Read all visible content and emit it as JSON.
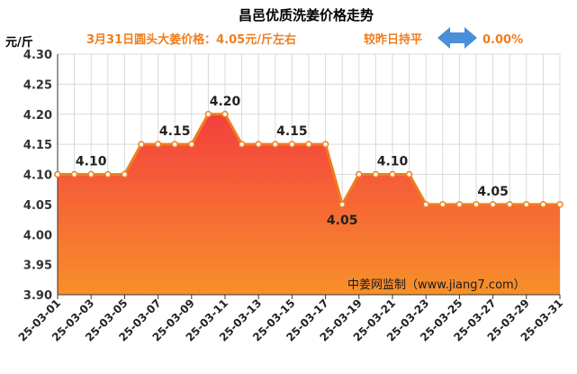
{
  "colors": {
    "accent": "#f07d1e",
    "area_top": "#f43f3f",
    "area_bottom": "#f7902a",
    "line": "#f07d1e",
    "arrow": "#4a8fd9",
    "grid": "#d9d9d9"
  },
  "header": {
    "title": "昌邑优质洗姜价格走势",
    "unit": "元/斤",
    "price_note": "3月31日圆头大姜价格：4.05元/斤左右",
    "compare_note": "较昨日持平",
    "change_icon": "double-arrow-icon",
    "change_value": "0.00%"
  },
  "watermark": "中姜网监制（www.jiang7.com）",
  "chart_data": {
    "type": "area",
    "title": "昌邑优质洗姜价格走势",
    "ylabel": "元/斤",
    "xlabel": "",
    "ylim": [
      3.9,
      4.3
    ],
    "yticks": [
      "4.30",
      "4.25",
      "4.20",
      "4.15",
      "4.10",
      "4.05",
      "4.00",
      "3.95",
      "3.90"
    ],
    "grid": true,
    "x": [
      "25-03-01",
      "25-03-02",
      "25-03-03",
      "25-03-04",
      "25-03-05",
      "25-03-06",
      "25-03-07",
      "25-03-08",
      "25-03-09",
      "25-03-10",
      "25-03-11",
      "25-03-12",
      "25-03-13",
      "25-03-14",
      "25-03-15",
      "25-03-16",
      "25-03-17",
      "25-03-18",
      "25-03-19",
      "25-03-20",
      "25-03-21",
      "25-03-22",
      "25-03-23",
      "25-03-24",
      "25-03-25",
      "25-03-26",
      "25-03-27",
      "25-03-28",
      "25-03-29",
      "25-03-30",
      "25-03-31"
    ],
    "x_tick_labels": [
      "25-03-01",
      "25-03-03",
      "25-03-05",
      "25-03-07",
      "25-03-09",
      "25-03-11",
      "25-03-13",
      "25-03-15",
      "25-03-17",
      "25-03-19",
      "25-03-21",
      "25-03-23",
      "25-03-25",
      "25-03-27",
      "25-03-29",
      "25-03-31"
    ],
    "values": [
      4.1,
      4.1,
      4.1,
      4.1,
      4.1,
      4.15,
      4.15,
      4.15,
      4.15,
      4.2,
      4.2,
      4.15,
      4.15,
      4.15,
      4.15,
      4.15,
      4.15,
      4.05,
      4.1,
      4.1,
      4.1,
      4.1,
      4.05,
      4.05,
      4.05,
      4.05,
      4.05,
      4.05,
      4.05,
      4.05,
      4.05
    ],
    "data_labels": [
      {
        "x": "25-03-03",
        "text": "4.10",
        "position": "above"
      },
      {
        "x": "25-03-08",
        "text": "4.15",
        "position": "above"
      },
      {
        "x": "25-03-11",
        "text": "4.20",
        "position": "above"
      },
      {
        "x": "25-03-15",
        "text": "4.15",
        "position": "above"
      },
      {
        "x": "25-03-18",
        "text": "4.05",
        "position": "below"
      },
      {
        "x": "25-03-21",
        "text": "4.10",
        "position": "above"
      },
      {
        "x": "25-03-27",
        "text": "4.05",
        "position": "above"
      }
    ]
  }
}
